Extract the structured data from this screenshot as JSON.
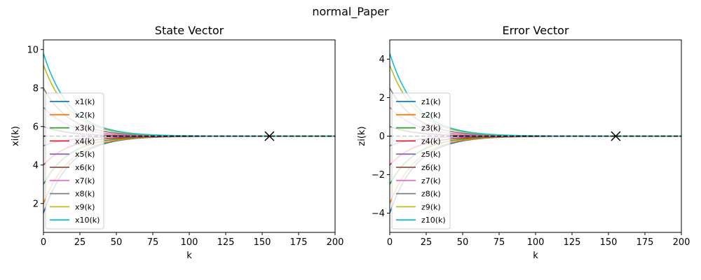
{
  "figure": {
    "suptitle": "normal_Paper"
  },
  "chart_data": [
    {
      "type": "line",
      "title": "State Vector",
      "xlabel": "k",
      "ylabel": "xi(k)",
      "xlim": [
        0,
        200
      ],
      "ylim": [
        0.5,
        10.5
      ],
      "xticks": [
        0,
        25,
        50,
        75,
        100,
        125,
        150,
        175,
        200
      ],
      "yticks": [
        2,
        4,
        6,
        8,
        10
      ],
      "grid": false,
      "legend": "left",
      "tau": 18,
      "ref_line": {
        "y": 5.5,
        "style": "dashed",
        "color": "#000000"
      },
      "marker": {
        "x": 155,
        "y": 5.5,
        "symbol": "x"
      },
      "series": [
        {
          "name": "x1(k)",
          "start": 1.5,
          "end": 5.5,
          "color": "#1f77b4"
        },
        {
          "name": "x2(k)",
          "start": 2.0,
          "end": 5.5,
          "color": "#ff7f0e"
        },
        {
          "name": "x3(k)",
          "start": 3.0,
          "end": 5.5,
          "color": "#2ca02c"
        },
        {
          "name": "x4(k)",
          "start": 4.0,
          "end": 5.5,
          "color": "#d62728"
        },
        {
          "name": "x5(k)",
          "start": 5.0,
          "end": 5.5,
          "color": "#9467bd"
        },
        {
          "name": "x6(k)",
          "start": 6.0,
          "end": 5.5,
          "color": "#8c564b"
        },
        {
          "name": "x7(k)",
          "start": 7.0,
          "end": 5.5,
          "color": "#e377c2"
        },
        {
          "name": "x8(k)",
          "start": 8.0,
          "end": 5.5,
          "color": "#7f7f7f"
        },
        {
          "name": "x9(k)",
          "start": 9.2,
          "end": 5.5,
          "color": "#bcbd22"
        },
        {
          "name": "x10(k)",
          "start": 9.8,
          "end": 5.5,
          "color": "#17becf"
        }
      ]
    },
    {
      "type": "line",
      "title": "Error Vector",
      "xlabel": "k",
      "ylabel": "zi(k)",
      "xlim": [
        0,
        200
      ],
      "ylim": [
        -5,
        5
      ],
      "xticks": [
        0,
        25,
        50,
        75,
        100,
        125,
        150,
        175,
        200
      ],
      "yticks": [
        -4,
        -2,
        0,
        2,
        4
      ],
      "grid": false,
      "legend": "left",
      "tau": 18,
      "ref_line": {
        "y": 0,
        "style": "dashed",
        "color": "#000000"
      },
      "marker": {
        "x": 155,
        "y": 0,
        "symbol": "x"
      },
      "series": [
        {
          "name": "z1(k)",
          "start": -4.0,
          "end": 0,
          "color": "#1f77b4"
        },
        {
          "name": "z2(k)",
          "start": -3.5,
          "end": 0,
          "color": "#ff7f0e"
        },
        {
          "name": "z3(k)",
          "start": -2.5,
          "end": 0,
          "color": "#2ca02c"
        },
        {
          "name": "z4(k)",
          "start": -1.5,
          "end": 0,
          "color": "#d62728"
        },
        {
          "name": "z5(k)",
          "start": -0.5,
          "end": 0,
          "color": "#9467bd"
        },
        {
          "name": "z6(k)",
          "start": 0.5,
          "end": 0,
          "color": "#8c564b"
        },
        {
          "name": "z7(k)",
          "start": 1.5,
          "end": 0,
          "color": "#e377c2"
        },
        {
          "name": "z8(k)",
          "start": 2.5,
          "end": 0,
          "color": "#7f7f7f"
        },
        {
          "name": "z9(k)",
          "start": 3.7,
          "end": 0,
          "color": "#bcbd22"
        },
        {
          "name": "z10(k)",
          "start": 4.3,
          "end": 0,
          "color": "#17becf"
        }
      ]
    }
  ]
}
